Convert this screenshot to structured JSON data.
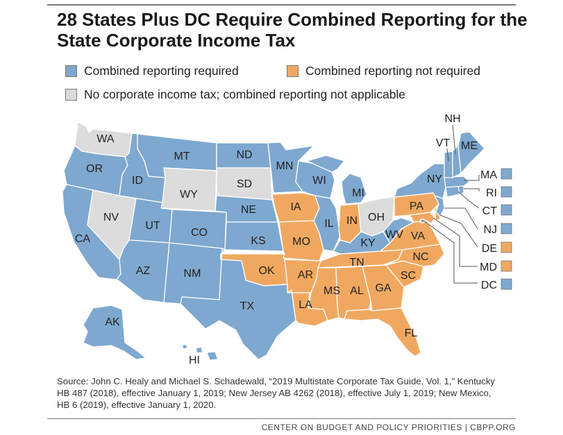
{
  "title": "28 States Plus DC Require Combined Reporting for the State Corporate Income Tax",
  "colors": {
    "required": "#7ea8cf",
    "not_required": "#f0a860",
    "not_applicable": "#dcdcdc",
    "border": "#ffffff"
  },
  "legend": {
    "required": "Combined reporting required",
    "not_required": "Combined reporting not required",
    "not_applicable": "No corporate income tax; combined reporting not applicable"
  },
  "states": {
    "WA": "WA",
    "OR": "OR",
    "CA": "CA",
    "NV": "NV",
    "ID": "ID",
    "MT": "MT",
    "WY": "WY",
    "UT": "UT",
    "AZ": "AZ",
    "CO": "CO",
    "NM": "NM",
    "ND": "ND",
    "SD": "SD",
    "NE": "NE",
    "KS": "KS",
    "OK": "OK",
    "TX": "TX",
    "MN": "MN",
    "IA": "IA",
    "MO": "MO",
    "AR": "AR",
    "LA": "LA",
    "WI": "WI",
    "IL": "IL",
    "MI": "MI",
    "IN": "IN",
    "OH": "OH",
    "KY": "KY",
    "TN": "TN",
    "MS": "MS",
    "AL": "AL",
    "GA": "GA",
    "FL": "FL",
    "SC": "SC",
    "NC": "NC",
    "VA": "VA",
    "WV": "WV",
    "PA": "PA",
    "NY": "NY",
    "VT": "VT",
    "NH": "NH",
    "ME": "ME",
    "AK": "AK",
    "HI": "HI"
  },
  "side_labels": {
    "MA": "MA",
    "RI": "RI",
    "CT": "CT",
    "NJ": "NJ",
    "DE": "DE",
    "MD": "MD",
    "DC": "DC"
  },
  "source": "Source: John C. Healy and Michael S. Schadewald, “2019 Multistate Corporate Tax Guide, Vol. 1,” Kentucky HB 487 (2018), effective January 1, 2019; New Jersey AB 4262 (2018), effective July 1, 2019; New Mexico, HB 6 (2019), effective January 1, 2020.",
  "footer": "CENTER ON BUDGET AND POLICY PRIORITIES | CBPP.ORG"
}
